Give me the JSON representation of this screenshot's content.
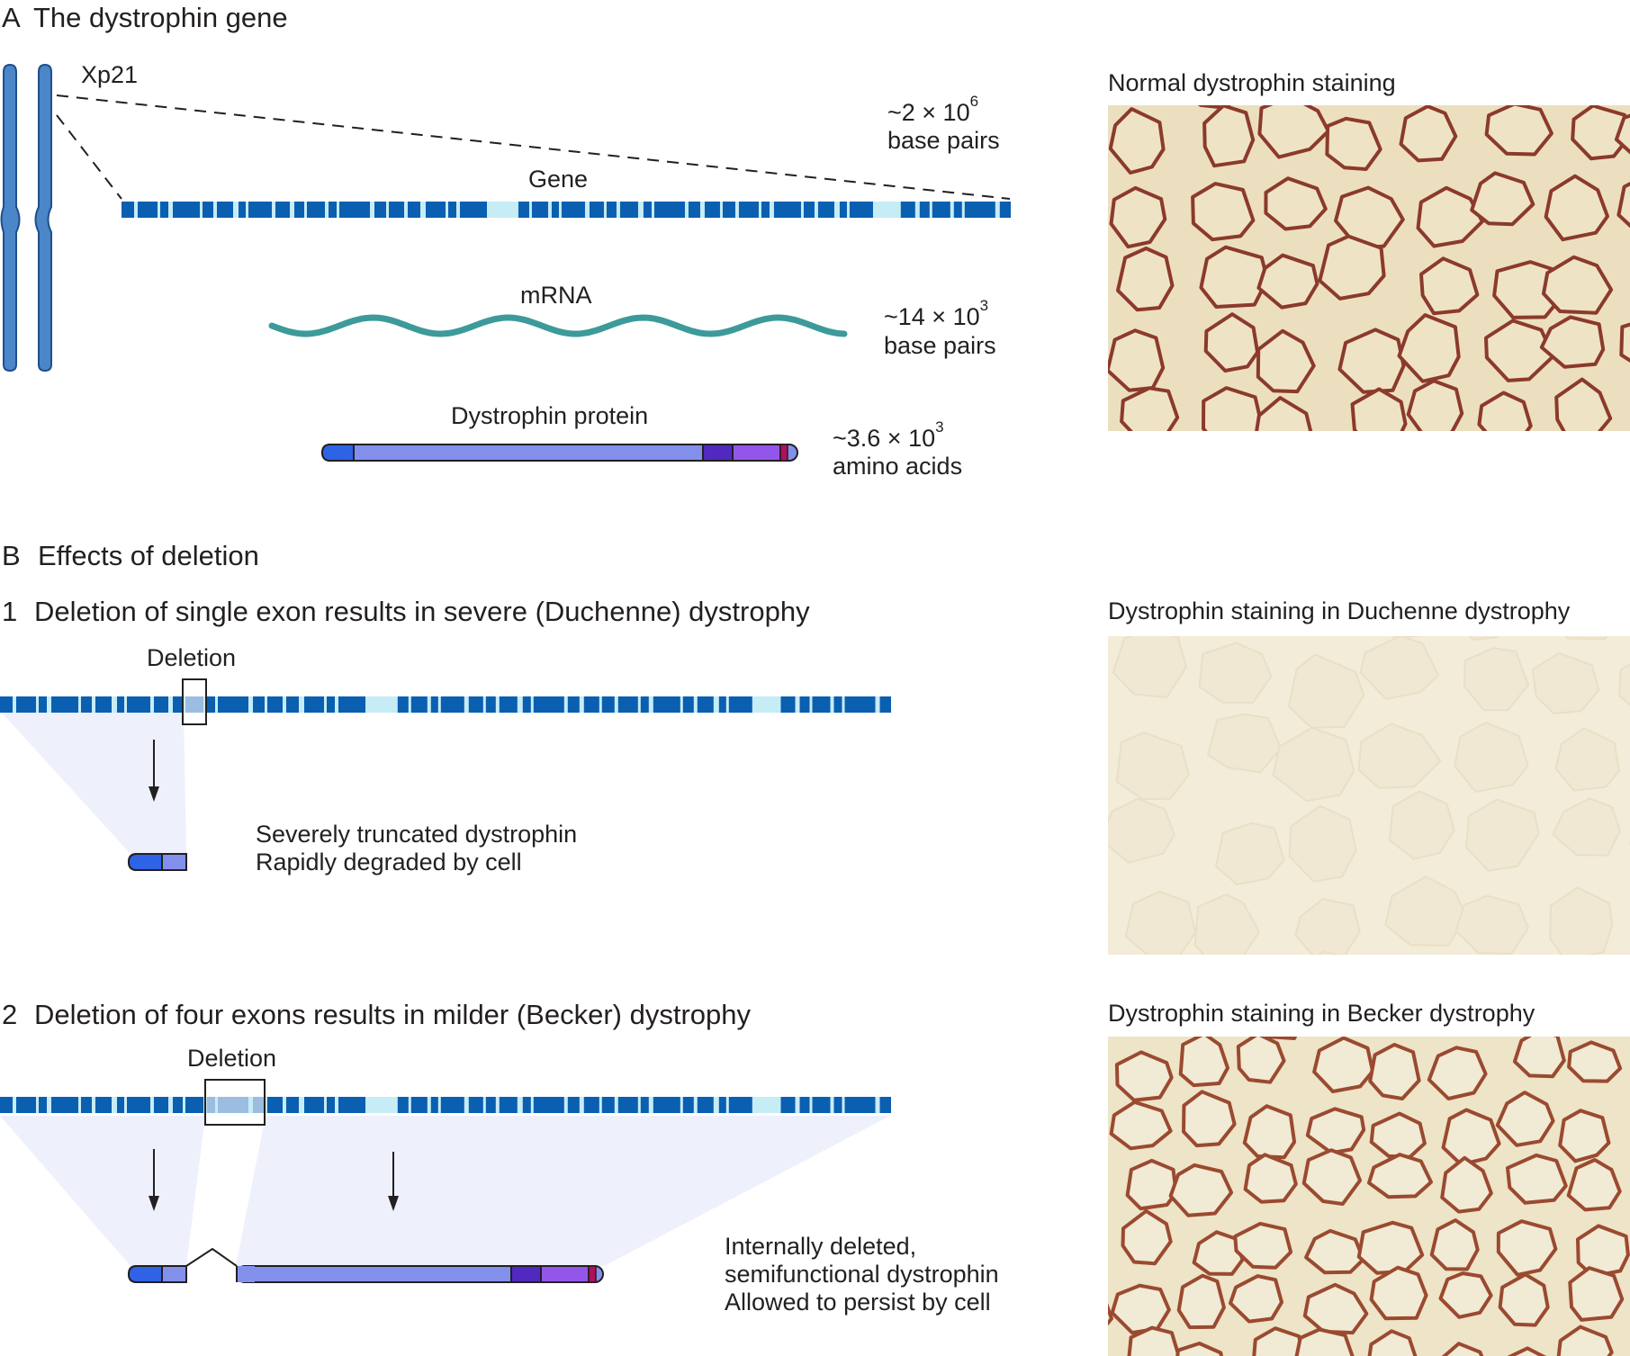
{
  "panel_a": {
    "letter": "A",
    "title": "The dystrophin gene",
    "locus": "Xp21",
    "gene_label": "Gene",
    "gene_size": {
      "pre": "~2 × 10",
      "exp": "6",
      "unit": "base pairs"
    },
    "mrna_label": "mRNA",
    "mrna_size": {
      "pre": "~14 × 10",
      "exp": "3",
      "unit": "base pairs"
    },
    "protein_label": "Dystrophin protein",
    "protein_size": {
      "pre": "~3.6 × 10",
      "exp": "3",
      "unit": "amino acids"
    },
    "photo_caption": "Normal dystrophin staining"
  },
  "panel_b": {
    "letter": "B",
    "title": "Effects of deletion",
    "sub1": {
      "number": "1",
      "title": "Deletion of single exon results in severe (Duchenne) dystrophy",
      "deletion_label": "Deletion",
      "result_line1": "Severely truncated dystrophin",
      "result_line2": "Rapidly degraded by cell",
      "photo_caption": "Dystrophin staining in Duchenne dystrophy"
    },
    "sub2": {
      "number": "2",
      "title": "Deletion of four exons results in milder (Becker) dystrophy",
      "deletion_label": "Deletion",
      "result_line1": "Internally deleted,",
      "result_line2": "semifunctional dystrophin",
      "result_line3": "Allowed to persist by cell",
      "photo_caption": "Dystrophin staining in Becker dystrophy"
    }
  },
  "colors": {
    "chromosome": "#4a86c8",
    "exon_dark": "#0a5fb0",
    "intron_light": "#c6ecf6",
    "mrna": "#3d9a9a",
    "protein_nterm": "#2f63e6",
    "protein_rod": "#8290ec",
    "protein_cys": "#5128c0",
    "protein_ct": "#9257ea",
    "protein_end": "#b0105a",
    "projection": "#eef0fc",
    "tissue_bg": "#ecdfbf",
    "membrane_normal": "#8b3a2b",
    "duchenne_bg": "#f3ecd8"
  }
}
